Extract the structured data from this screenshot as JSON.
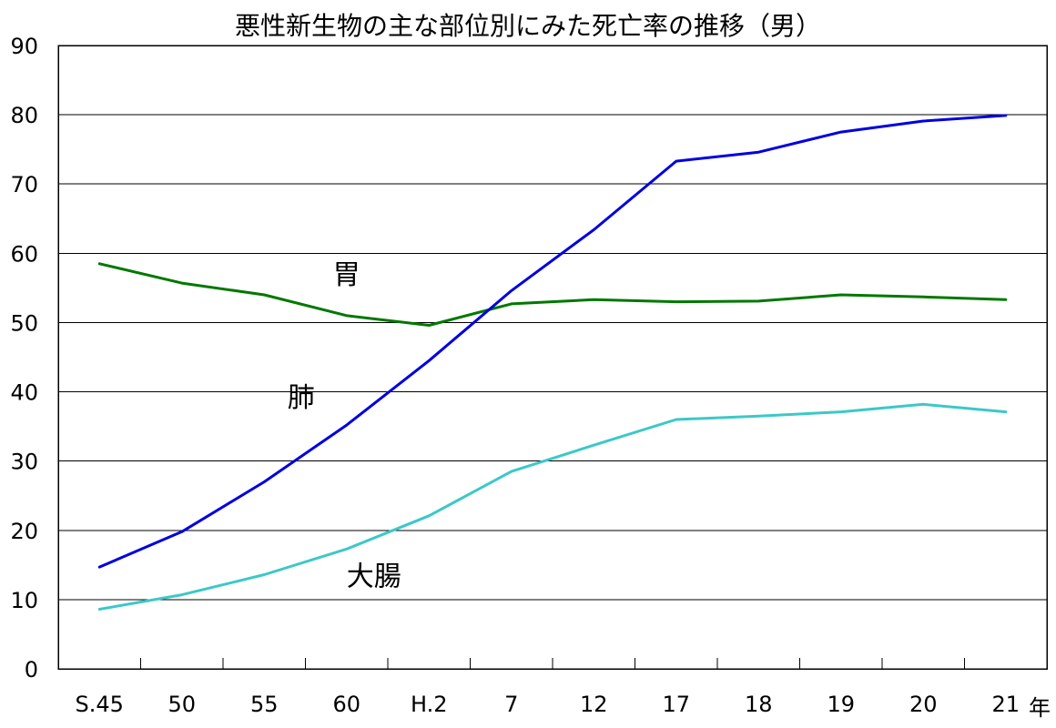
{
  "chart_data": {
    "type": "line",
    "title": "悪性新生物の主な部位別にみた死亡率の推移（男）",
    "categories": [
      "S.45",
      "50",
      "55",
      "60",
      "H.2",
      "7",
      "12",
      "17",
      "18",
      "19",
      "20",
      "21"
    ],
    "x_unit": "年",
    "ylim": [
      0,
      90
    ],
    "y_ticks": [
      0,
      10,
      20,
      30,
      40,
      50,
      60,
      70,
      80,
      90
    ],
    "grid": true,
    "legend": "none",
    "series": [
      {
        "name": "胃",
        "color": "#007800",
        "values": [
          58.5,
          55.7,
          54.0,
          51.0,
          49.6,
          52.7,
          53.3,
          53.0,
          53.1,
          54.0,
          53.7,
          53.3
        ]
      },
      {
        "name": "肺",
        "color": "#0000e0",
        "values": [
          14.7,
          19.8,
          27.0,
          35.2,
          44.5,
          54.6,
          63.4,
          73.3,
          74.6,
          77.5,
          79.1,
          79.9
        ]
      },
      {
        "name": "大腸",
        "color": "#3cc8c8",
        "values": [
          8.6,
          10.7,
          13.6,
          17.3,
          22.1,
          28.5,
          32.3,
          36.0,
          36.5,
          37.1,
          38.2,
          37.1
        ]
      }
    ]
  }
}
